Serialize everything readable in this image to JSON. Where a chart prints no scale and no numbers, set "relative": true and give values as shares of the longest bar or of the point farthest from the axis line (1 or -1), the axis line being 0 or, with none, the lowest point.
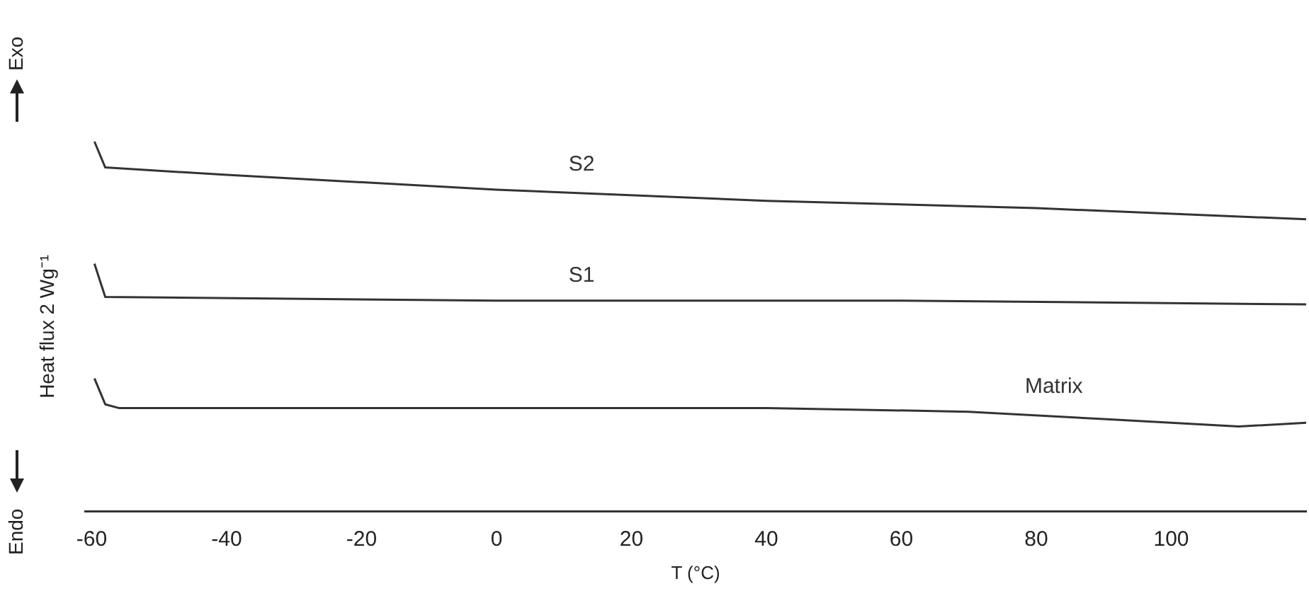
{
  "chart_data": {
    "type": "line",
    "relative": true,
    "xlabel": "T (°C)",
    "ylabel": "Heat flux 2 Wg⁻¹",
    "annotations": [
      "Exo",
      "Endo"
    ],
    "xlim": [
      -61,
      120
    ],
    "xticks": [
      -60,
      -40,
      -20,
      0,
      20,
      40,
      60,
      80,
      100
    ],
    "grid": false,
    "legend": false,
    "marker": "none",
    "line_style": "solid",
    "series": [
      {
        "name": "S2",
        "color": "#333333",
        "x": [
          -59.6,
          -58,
          -40,
          0,
          40,
          80,
          120
        ],
        "values": [
          1.0,
          0.93,
          0.91,
          0.87,
          0.84,
          0.82,
          0.79
        ]
      },
      {
        "name": "S1",
        "color": "#333333",
        "x": [
          -59.6,
          -58,
          0,
          60,
          120
        ],
        "values": [
          0.67,
          0.58,
          0.57,
          0.57,
          0.56
        ]
      },
      {
        "name": "Matrix",
        "color": "#333333",
        "x": [
          -59.6,
          -58,
          -56,
          0,
          40,
          70,
          90,
          100,
          110,
          120
        ],
        "values": [
          0.36,
          0.29,
          0.28,
          0.28,
          0.28,
          0.27,
          0.25,
          0.24,
          0.23,
          0.24
        ]
      }
    ]
  }
}
